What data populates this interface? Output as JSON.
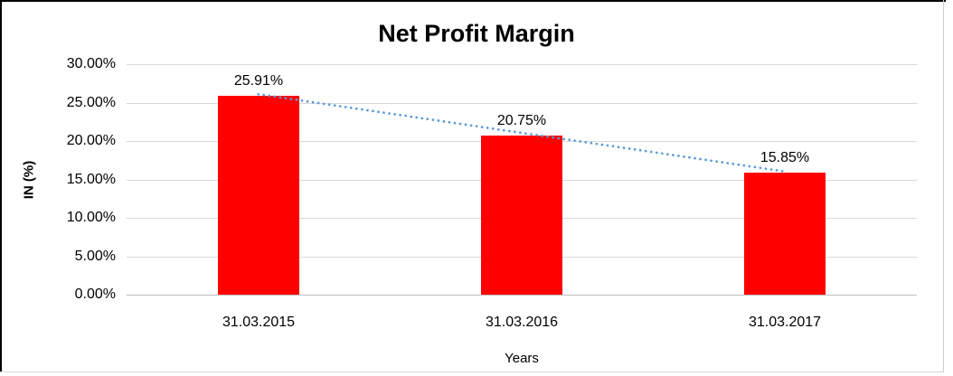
{
  "chart_data": {
    "type": "bar",
    "title": "Net Profit Margin",
    "categories": [
      "31.03.2015",
      "31.03.2016",
      "31.03.2017"
    ],
    "values": [
      25.91,
      20.75,
      15.85
    ],
    "data_labels": [
      "25.91%",
      "20.75%",
      "15.85%"
    ],
    "xlabel": "Years",
    "ylabel": "IN (%)",
    "ylim": [
      0,
      30
    ],
    "yticks": [
      0,
      5,
      10,
      15,
      20,
      25,
      30
    ],
    "ytick_labels": [
      "0.00%",
      "5.00%",
      "10.00%",
      "15.00%",
      "20.00%",
      "25.00%",
      "30.00%"
    ],
    "grid": true,
    "legend": "none",
    "colors": {
      "bar": "#FF0000",
      "trendline": "#5B9BD5",
      "gridline": "#D9D9D9",
      "axis_line": "#BFBFBF",
      "text": "#000000"
    },
    "trendline": {
      "type": "linear",
      "style": "dotted",
      "start_value": 25.91,
      "end_value": 15.85
    }
  }
}
